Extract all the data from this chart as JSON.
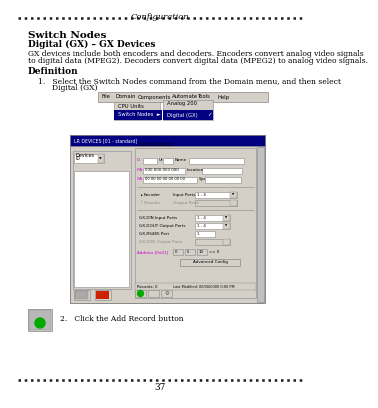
{
  "title": "Configuration",
  "page_number": "37",
  "section_title": "Switch Nodes",
  "subsection_title": "Digital (GX) – GX Devices",
  "body_line1": "GX devices include both encoders and decoders. Encoders convert analog video signals",
  "body_line2": "to digital data (MPEG2). Decoders convert digital data (MPEG2) to analog video signals.",
  "definition_label": "Definition",
  "step1_line1": "Select the Switch Nodes command from the Domain menu, and then select",
  "step1_line2": "Digital (GX)",
  "step2_text": "Click the Add Record button",
  "background_color": "#ffffff",
  "gray_bg": "#d4d0c8",
  "dark_blue": "#000080",
  "text_black": "#000000",
  "text_magenta": "#cc00cc",
  "text_gray": "#888888",
  "border_color": "#888888",
  "white": "#ffffff",
  "green": "#00aa00",
  "red_btn": "#cc2200",
  "dotted_color": "#333333"
}
